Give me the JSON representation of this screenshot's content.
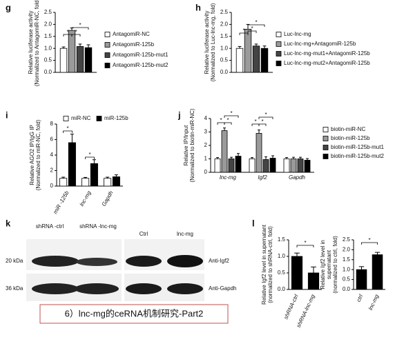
{
  "chart_data": [
    {
      "panel": "g",
      "type": "bar",
      "ylabel": [
        "Relative luciferase activity",
        "(Normalized to AntagomiR-NC, fold)"
      ],
      "categories": [
        null
      ],
      "series": [
        {
          "name": "AntagomiR-NC",
          "color": "#ffffff",
          "values": [
            1.0
          ],
          "errors": [
            0.06
          ]
        },
        {
          "name": "AntagomiR-125b",
          "color": "#9a9a9a",
          "values": [
            1.75
          ],
          "errors": [
            0.1
          ]
        },
        {
          "name": "AntagomiR-125b-mut1",
          "color": "#444444",
          "values": [
            1.08
          ],
          "errors": [
            0.1
          ]
        },
        {
          "name": "AntagomiR-125b-mut2",
          "color": "#000000",
          "values": [
            1.03
          ],
          "errors": [
            0.12
          ]
        }
      ],
      "ylim": [
        0,
        2.5
      ],
      "yticks": [
        {
          "value": 0,
          "label": "0.0"
        },
        {
          "value": 0.5,
          "label": "0.5"
        },
        {
          "value": 1,
          "label": "1.0"
        },
        {
          "value": 1.5,
          "label": "1.5"
        },
        {
          "value": 2,
          "label": "2.0"
        },
        {
          "value": 2.5,
          "label": "2.5"
        }
      ],
      "annotations": [
        "*",
        "*",
        "*"
      ],
      "legend": "right"
    },
    {
      "panel": "h",
      "type": "bar",
      "ylabel": [
        "Relative luciferase activity",
        "(Normalized to Luc-lnc-mg, fold)"
      ],
      "categories": [
        null
      ],
      "series": [
        {
          "name": "Luc-lnc-mg",
          "color": "#ffffff",
          "values": [
            1.0
          ],
          "errors": [
            0.08
          ]
        },
        {
          "name": "Luc-lnc-mg+AntagomiR-125b",
          "color": "#9a9a9a",
          "values": [
            1.8
          ],
          "errors": [
            0.2
          ]
        },
        {
          "name": "Luc-lnc-mg-mut1+AntagomiR-125b",
          "color": "#444444",
          "values": [
            1.1
          ],
          "errors": [
            0.08
          ]
        },
        {
          "name": "Luc-lnc-mg-mut2+AntagomiR-125b",
          "color": "#000000",
          "values": [
            1.0
          ],
          "errors": [
            0.1
          ]
        }
      ],
      "ylim": [
        0,
        2.5
      ],
      "yticks": [
        {
          "value": 0,
          "label": "0.0"
        },
        {
          "value": 0.5,
          "label": "0.5"
        },
        {
          "value": 1,
          "label": "1.0"
        },
        {
          "value": 1.5,
          "label": "1.5"
        },
        {
          "value": 2,
          "label": "2.0"
        },
        {
          "value": 2.5,
          "label": "2.5"
        }
      ],
      "annotations": [
        "*",
        "*",
        "*"
      ],
      "legend": "right"
    },
    {
      "panel": "i",
      "type": "bar",
      "ylabel": [
        "Relative AGO2 IP/IgG IP",
        "(Normalized to miR-NC, fold)"
      ],
      "categories": [
        "miR -125b",
        "lnc-mg",
        "Gapdh"
      ],
      "series": [
        {
          "name": "miR-NC",
          "color": "#ffffff",
          "values": [
            1.0,
            1.0,
            1.0
          ],
          "errors": [
            0.15,
            0.12,
            0.15
          ]
        },
        {
          "name": "miR-125b",
          "color": "#000000",
          "values": [
            5.6,
            2.9,
            1.2
          ],
          "errors": [
            1.1,
            0.5,
            0.25
          ]
        }
      ],
      "ylim": [
        0,
        8
      ],
      "yticks": [
        0,
        2,
        4,
        6,
        8
      ],
      "annotations": [
        "*",
        "*"
      ],
      "legend": "top"
    },
    {
      "panel": "j",
      "type": "bar",
      "ylabel": [
        "Relative IP/Input",
        "(Normalized to biotin-miR-NC)"
      ],
      "categories": [
        "lnc-mg",
        "Igf2",
        "Gapdh"
      ],
      "series": [
        {
          "name": "biotin-miR-NC",
          "color": "#ffffff",
          "values": [
            1.0,
            1.0,
            1.0
          ],
          "errors": [
            0.1,
            0.1,
            0.1
          ]
        },
        {
          "name": "biotin-miR-125b",
          "color": "#9a9a9a",
          "values": [
            3.1,
            2.9,
            1.0
          ],
          "errors": [
            0.2,
            0.25,
            0.12
          ]
        },
        {
          "name": "biotin-miR-125b-mut1",
          "color": "#444444",
          "values": [
            1.0,
            0.95,
            1.0
          ],
          "errors": [
            0.12,
            0.2,
            0.12
          ]
        },
        {
          "name": "biotin-miR-125b-mut2",
          "color": "#000000",
          "values": [
            1.2,
            1.05,
            0.9
          ],
          "errors": [
            0.2,
            0.18,
            0.12
          ]
        }
      ],
      "ylim": [
        0,
        4
      ],
      "yticks": [
        0,
        1,
        2,
        3,
        4
      ],
      "annotations": [
        "*",
        "*",
        "*",
        "*",
        "*",
        "*"
      ],
      "legend": "right"
    },
    {
      "panel": "l",
      "type": "bar",
      "ylabel": [
        "Relative Igf2 level in supernatant",
        "(normalized to shRNA-ctrl, fold)"
      ],
      "categories": [
        "shRNA-ctrl",
        "shRNA-lnc-mg"
      ],
      "series": [
        {
          "color": "#000000",
          "values": [
            1.0,
            0.5
          ],
          "errors": [
            0.1,
            0.18
          ]
        }
      ],
      "ylim": [
        0,
        1.5
      ],
      "yticks": [
        {
          "value": 0,
          "label": "0.0"
        },
        {
          "value": 0.5,
          "label": "0.5"
        },
        {
          "value": 1,
          "label": "1.0"
        },
        {
          "value": 1.5,
          "label": "1.5"
        }
      ],
      "annotations": [
        "*"
      ]
    },
    {
      "type": "bar",
      "ylabel": [
        "Relative Igf2 level in",
        "supernatant",
        "(normalized to ctrl, fold)"
      ],
      "categories": [
        "ctrl",
        "lnc-mg"
      ],
      "series": [
        {
          "color": "#000000",
          "values": [
            1.0,
            1.75
          ],
          "errors": [
            0.15,
            0.12
          ]
        }
      ],
      "ylim": [
        0,
        2.5
      ],
      "yticks": [
        {
          "value": 0,
          "label": "0.0"
        },
        {
          "value": 0.5,
          "label": "0.5"
        },
        {
          "value": 1,
          "label": "1.0"
        },
        {
          "value": 1.5,
          "label": "1.5"
        },
        {
          "value": 2,
          "label": "2.0"
        },
        {
          "value": 2.5,
          "label": "2.5"
        }
      ],
      "annotations": [
        "*"
      ]
    }
  ],
  "blot": {
    "panel": "k",
    "lanes": [
      "shRNA -ctrl",
      "shRNA -lnc-mg",
      "Ctrl",
      "lnc-mg"
    ],
    "markers": [
      "20 kDa",
      "36 kDa"
    ],
    "antibodies": [
      "Anti-Igf2",
      "Anti-Gapdh"
    ]
  },
  "caption": "6）lnc-mg的ceRNA机制研究-Part2"
}
